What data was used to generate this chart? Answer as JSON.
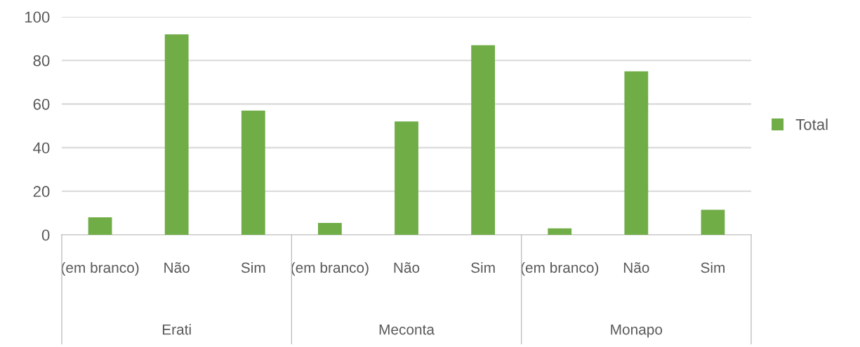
{
  "chart_data": {
    "type": "bar",
    "categories": [
      "(em branco)",
      "Não",
      "Sim",
      "(em branco)",
      "Não",
      "Sim",
      "(em branco)",
      "Não",
      "Sim"
    ],
    "annotations": [
      "Erati",
      "Meconta",
      "Monapo"
    ],
    "series": [
      {
        "name": "Total",
        "color": "#70ad47",
        "values": [
          8,
          92,
          57,
          5.5,
          52,
          87,
          3,
          75,
          11.5
        ]
      }
    ],
    "ylim": [
      0,
      100
    ],
    "yticks": [
      0,
      20,
      40,
      60,
      80,
      100
    ],
    "grid": "y",
    "legend": "right"
  }
}
